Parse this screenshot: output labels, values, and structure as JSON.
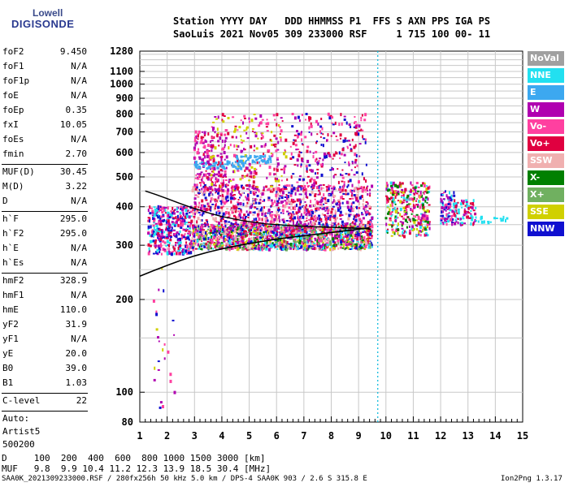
{
  "logo": {
    "line1": "Lowell",
    "line2": "DIGISONDE"
  },
  "header": {
    "line1": "Station YYYY DAY   DDD HHMMSS P1  FFS S AXN PPS IGA PS",
    "line2": "SaoLuis 2021 Nov05 309 233000 RSF     1 715 100 00- 11"
  },
  "params_group1": [
    {
      "name": "foF2",
      "value": "9.450"
    },
    {
      "name": "foF1",
      "value": "N/A"
    },
    {
      "name": "foF1p",
      "value": "N/A"
    },
    {
      "name": "foE",
      "value": "N/A"
    },
    {
      "name": "foEp",
      "value": "0.35"
    },
    {
      "name": "fxI",
      "value": "10.05"
    },
    {
      "name": "foEs",
      "value": "N/A"
    },
    {
      "name": "fmin",
      "value": "2.70"
    }
  ],
  "params_group2": [
    {
      "name": "MUF(D)",
      "value": "30.45"
    },
    {
      "name": "M(D)",
      "value": "3.22"
    },
    {
      "name": "D",
      "value": "N/A"
    }
  ],
  "params_group3": [
    {
      "name": "h`F",
      "value": "295.0"
    },
    {
      "name": "h`F2",
      "value": "295.0"
    },
    {
      "name": "h`E",
      "value": "N/A"
    },
    {
      "name": "h`Es",
      "value": "N/A"
    }
  ],
  "params_group4": [
    {
      "name": "hmF2",
      "value": "328.9"
    },
    {
      "name": "hmF1",
      "value": "N/A"
    },
    {
      "name": "hmE",
      "value": "110.0"
    },
    {
      "name": "yF2",
      "value": "31.9"
    },
    {
      "name": "yF1",
      "value": "N/A"
    },
    {
      "name": "yE",
      "value": "20.0"
    },
    {
      "name": "B0",
      "value": "39.0"
    },
    {
      "name": "B1",
      "value": "1.03"
    }
  ],
  "c_level": {
    "name": "C-level",
    "value": "22"
  },
  "auto_block": [
    "Auto:",
    "Artist5",
    "500200"
  ],
  "legend": [
    {
      "label": "NoVal",
      "color": "#a0a0a0"
    },
    {
      "label": "NNE",
      "color": "#22e0f0"
    },
    {
      "label": "E",
      "color": "#3ca8f0"
    },
    {
      "label": "W",
      "color": "#b000b0"
    },
    {
      "label": "Vo-",
      "color": "#ff40a0"
    },
    {
      "label": "Vo+",
      "color": "#e00040"
    },
    {
      "label": "SSW",
      "color": "#f0b0b0"
    },
    {
      "label": "X-",
      "color": "#008000"
    },
    {
      "label": "X+",
      "color": "#70b060"
    },
    {
      "label": "SSE",
      "color": "#d0d000"
    },
    {
      "label": "NNW",
      "color": "#1010d0"
    }
  ],
  "muf_table": {
    "d_line": "D     100  200  400  600  800 1000 1500 3000 [km]",
    "muf_line": "MUF   9.8  9.9 10.4 11.2 12.3 13.9 18.5 30.4 [MHz]"
  },
  "footer": {
    "file_info": "SAA0K_2021309233000.RSF / 280fx256h 50 kHz 5.0 km / DPS-4 SAA0K 903 / 2.6 S 315.8 E",
    "version": "Ion2Png 1.3.17"
  },
  "chart_data": {
    "type": "scatter",
    "title": "",
    "xlabel": "",
    "ylabel": "",
    "xlim": [
      1,
      15
    ],
    "ylim": [
      80,
      1280
    ],
    "y_scale": "log",
    "grid": true,
    "x_ticks": [
      1,
      2,
      3,
      4,
      5,
      6,
      7,
      8,
      9,
      10,
      11,
      12,
      13,
      14,
      15
    ],
    "y_ticks": [
      80,
      100,
      200,
      300,
      400,
      500,
      600,
      700,
      800,
      900,
      1000,
      1100,
      1280
    ],
    "foF2_marker_x": 9.7,
    "trace": {
      "name": "h'F2 trace",
      "x": [
        1.0,
        1.5,
        2.0,
        2.5,
        3.0,
        3.5,
        4.0,
        4.5,
        5.0,
        5.5,
        6.0,
        6.5,
        7.0,
        7.5,
        8.0,
        8.5,
        9.0,
        9.4
      ],
      "y": [
        238,
        248,
        258,
        268,
        277,
        285,
        292,
        298,
        304,
        309,
        314,
        318,
        322,
        326,
        330,
        334,
        338,
        342
      ]
    },
    "profile": {
      "name": "profile",
      "x": [
        1.2,
        1.6,
        2.0,
        2.4,
        2.8,
        3.2,
        3.6,
        4.0,
        4.4,
        4.8,
        5.2,
        5.6,
        6.0,
        6.4,
        6.8,
        7.2,
        7.6,
        8.0,
        8.4,
        8.8,
        9.2,
        9.45
      ],
      "y": [
        450,
        438,
        425,
        412,
        400,
        390,
        380,
        372,
        366,
        360,
        356,
        352,
        350,
        348,
        346,
        345,
        344,
        343,
        342,
        341,
        340,
        338
      ]
    },
    "clusters": [
      {
        "x": [
          1.3,
          2.9
        ],
        "y": [
          280,
          400
        ],
        "n": 420,
        "colors": [
          "#1010d0",
          "#b000b0",
          "#ff40a0",
          "#22e0f0",
          "#e00040"
        ]
      },
      {
        "x": [
          2.9,
          9.5
        ],
        "y": [
          290,
          350
        ],
        "n": 1500,
        "colors": [
          "#b000b0",
          "#ff40a0",
          "#e00040",
          "#d0d000",
          "#008000",
          "#22e0f0",
          "#f0b0b0",
          "#1010d0",
          "#70b060"
        ]
      },
      {
        "x": [
          2.9,
          9.5
        ],
        "y": [
          330,
          470
        ],
        "n": 1100,
        "colors": [
          "#b000b0",
          "#ff40a0",
          "#e00040",
          "#1010d0",
          "#f0b0b0"
        ]
      },
      {
        "x": [
          3.0,
          4.2
        ],
        "y": [
          450,
          700
        ],
        "n": 200,
        "colors": [
          "#b000b0",
          "#ff40a0",
          "#e00040"
        ]
      },
      {
        "x": [
          3.6,
          6.4
        ],
        "y": [
          450,
          800
        ],
        "n": 240,
        "colors": [
          "#b000b0",
          "#ff40a0",
          "#e00040",
          "#d0d000"
        ]
      },
      {
        "x": [
          6.5,
          9.3
        ],
        "y": [
          450,
          800
        ],
        "n": 260,
        "colors": [
          "#b000b0",
          "#ff40a0",
          "#e00040",
          "#1010d0"
        ]
      },
      {
        "x": [
          3.0,
          4.8
        ],
        "y": [
          530,
          560
        ],
        "n": 60,
        "colors": [
          "#3ca8f0"
        ]
      },
      {
        "x": [
          4.5,
          5.8
        ],
        "y": [
          555,
          585
        ],
        "n": 50,
        "colors": [
          "#3ca8f0"
        ]
      },
      {
        "x": [
          10.0,
          11.6
        ],
        "y": [
          320,
          480
        ],
        "n": 340,
        "colors": [
          "#b000b0",
          "#ff40a0",
          "#e00040",
          "#22e0f0",
          "#d0d000",
          "#008000"
        ]
      },
      {
        "x": [
          12.0,
          12.5
        ],
        "y": [
          350,
          450
        ],
        "n": 90,
        "colors": [
          "#22e0f0",
          "#b000b0",
          "#ff40a0",
          "#1010d0"
        ]
      },
      {
        "x": [
          12.5,
          13.3
        ],
        "y": [
          350,
          420
        ],
        "n": 80,
        "colors": [
          "#b000b0",
          "#e00040",
          "#22e0f0"
        ]
      },
      {
        "x": [
          13.3,
          14.5
        ],
        "y": [
          355,
          370
        ],
        "n": 20,
        "colors": [
          "#22e0f0"
        ]
      },
      {
        "x": [
          1.5,
          2.3
        ],
        "y": [
          85,
          260
        ],
        "n": 25,
        "colors": [
          "#1010d0",
          "#b000b0",
          "#ff40a0",
          "#d0d000"
        ]
      }
    ]
  }
}
